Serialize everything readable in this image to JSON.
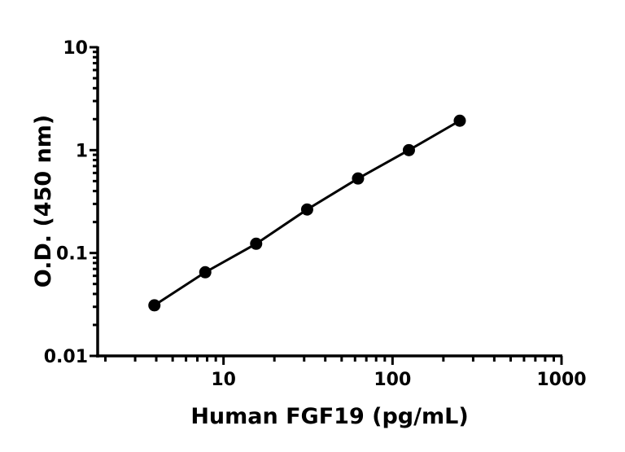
{
  "chart_data": {
    "type": "line",
    "title": "",
    "xlabel": "Human FGF19 (pg/mL)",
    "ylabel": "O.D. (450 nm)",
    "xscale": "log",
    "yscale": "log",
    "xlim": [
      1.8,
      1000
    ],
    "ylim": [
      0.01,
      10
    ],
    "xticks": [
      10,
      100,
      1000
    ],
    "xtick_labels": [
      "10",
      "100",
      "1000"
    ],
    "yticks": [
      0.01,
      0.1,
      1,
      10
    ],
    "ytick_labels": [
      "0.01",
      "0.1",
      "1",
      "10"
    ],
    "grid": false,
    "legend": "none",
    "series": [
      {
        "x": [
          3.9,
          7.8,
          15.6,
          31.25,
          62.5,
          125,
          250
        ],
        "y": [
          0.031,
          0.065,
          0.123,
          0.265,
          0.53,
          1.0,
          1.93
        ],
        "color": "#000000",
        "marker": "circle"
      }
    ]
  }
}
